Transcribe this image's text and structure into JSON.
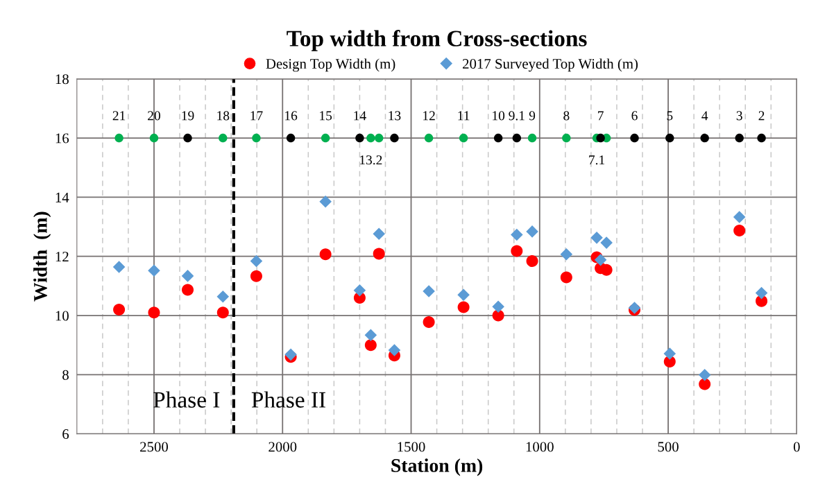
{
  "chart_data": {
    "type": "scatter",
    "title": "Top width from Cross-sections",
    "xlabel": "Station (m)",
    "ylabel": "Width  (m)",
    "xlim": [
      2800,
      0
    ],
    "ylim": [
      6,
      18
    ],
    "xticks": [
      0,
      {
        "value": 100,
        "label": null
      },
      {
        "value": 200,
        "label": null
      },
      {
        "value": 300,
        "label": null
      },
      {
        "value": 400,
        "label": null
      },
      500,
      {
        "value": 600,
        "label": null
      },
      {
        "value": 700,
        "label": null
      },
      {
        "value": 800,
        "label": null
      },
      {
        "value": 900,
        "label": null
      },
      1000,
      {
        "value": 1100,
        "label": null
      },
      {
        "value": 1200,
        "label": null
      },
      {
        "value": 1300,
        "label": null
      },
      {
        "value": 1400,
        "label": null
      },
      1500,
      {
        "value": 1600,
        "label": null
      },
      {
        "value": 1700,
        "label": null
      },
      {
        "value": 1800,
        "label": null
      },
      {
        "value": 1900,
        "label": null
      },
      2000,
      {
        "value": 2100,
        "label": null
      },
      {
        "value": 2200,
        "label": null
      },
      {
        "value": 2300,
        "label": null
      },
      {
        "value": 2400,
        "label": null
      },
      2500,
      {
        "value": 2600,
        "label": null
      },
      {
        "value": 2700,
        "label": null
      }
    ],
    "yticks": [
      6,
      8,
      10,
      12,
      14,
      16,
      18
    ],
    "grid": true,
    "legend": "top",
    "series": [
      {
        "name": "Design Top Width (m)",
        "color": "#ff0000",
        "marker": "circle",
        "x": [
          2636,
          2500,
          2369,
          2232,
          2102,
          1968,
          1833,
          1700,
          1657,
          1625,
          1565,
          1431,
          1296,
          1161,
          1089,
          1029,
          896,
          778,
          763,
          740,
          631,
          494,
          358,
          223,
          137
        ],
        "values": [
          10.2,
          10.1,
          10.87,
          10.1,
          11.33,
          8.6,
          12.07,
          10.6,
          9.0,
          12.09,
          8.65,
          9.78,
          10.28,
          10.0,
          12.18,
          11.84,
          11.29,
          11.97,
          11.6,
          11.54,
          10.19,
          8.44,
          7.68,
          12.87,
          10.49
        ]
      },
      {
        "name": "2017 Surveyed Top Width (m)",
        "color": "#5b9bd5",
        "marker": "diamond",
        "x": [
          2636,
          2500,
          2369,
          2232,
          2102,
          1968,
          1833,
          1700,
          1657,
          1625,
          1565,
          1431,
          1296,
          1161,
          1089,
          1029,
          896,
          778,
          763,
          740,
          631,
          494,
          358,
          223,
          137
        ],
        "values": [
          11.64,
          11.52,
          11.34,
          10.64,
          11.84,
          8.68,
          13.85,
          10.85,
          9.34,
          12.76,
          8.83,
          10.82,
          10.7,
          10.3,
          12.73,
          12.84,
          12.07,
          12.63,
          11.88,
          12.46,
          10.26,
          8.71,
          7.99,
          13.33,
          10.76
        ]
      },
      {
        "color": "#00b050",
        "marker": "circle",
        "x": [
          2636,
          2500,
          2232,
          2102,
          1833,
          1657,
          1625,
          1431,
          1296,
          1029,
          896,
          778,
          740
        ],
        "values": [
          16,
          16,
          16,
          16,
          16,
          16,
          16,
          16,
          16,
          16,
          16,
          16,
          16
        ]
      },
      {
        "color": "#000000",
        "marker": "circle",
        "x": [
          2369,
          1968,
          1700,
          1565,
          1161,
          1089,
          763,
          631,
          494,
          358,
          223,
          137
        ],
        "values": [
          16,
          16,
          16,
          16,
          16,
          16,
          16,
          16,
          16,
          16,
          16,
          16
        ]
      }
    ],
    "ref_lines": [
      {
        "axis": "x",
        "value": 2190,
        "color": "#000000",
        "line_style": "dashed"
      }
    ],
    "annotations": [
      {
        "text": "21",
        "x": 2636,
        "y": 16
      },
      {
        "text": "20",
        "x": 2500,
        "y": 16
      },
      {
        "text": "19",
        "x": 2369,
        "y": 16
      },
      {
        "text": "18",
        "x": 2232,
        "y": 16
      },
      {
        "text": "17",
        "x": 2102,
        "y": 16
      },
      {
        "text": "16",
        "x": 1968,
        "y": 16
      },
      {
        "text": "15",
        "x": 1833,
        "y": 16
      },
      {
        "text": "14",
        "x": 1700,
        "y": 16
      },
      {
        "text": "13.2",
        "x": 1657,
        "y": 16
      },
      {
        "text": "13",
        "x": 1565,
        "y": 16
      },
      {
        "text": "12",
        "x": 1431,
        "y": 16
      },
      {
        "text": "11",
        "x": 1296,
        "y": 16
      },
      {
        "text": "10",
        "x": 1161,
        "y": 16
      },
      {
        "text": "9.1",
        "x": 1089,
        "y": 16
      },
      {
        "text": "9",
        "x": 1029,
        "y": 16
      },
      {
        "text": "8",
        "x": 896,
        "y": 16
      },
      {
        "text": "7",
        "x": 763,
        "y": 16
      },
      {
        "text": "7.1",
        "x": 778,
        "y": 16
      },
      {
        "text": "6",
        "x": 631,
        "y": 16
      },
      {
        "text": "5",
        "x": 494,
        "y": 16
      },
      {
        "text": "4",
        "x": 358,
        "y": 16
      },
      {
        "text": "3",
        "x": 223,
        "y": 16
      },
      {
        "text": "2",
        "x": 137,
        "y": 16
      },
      "Phase I",
      "Phase II"
    ]
  }
}
